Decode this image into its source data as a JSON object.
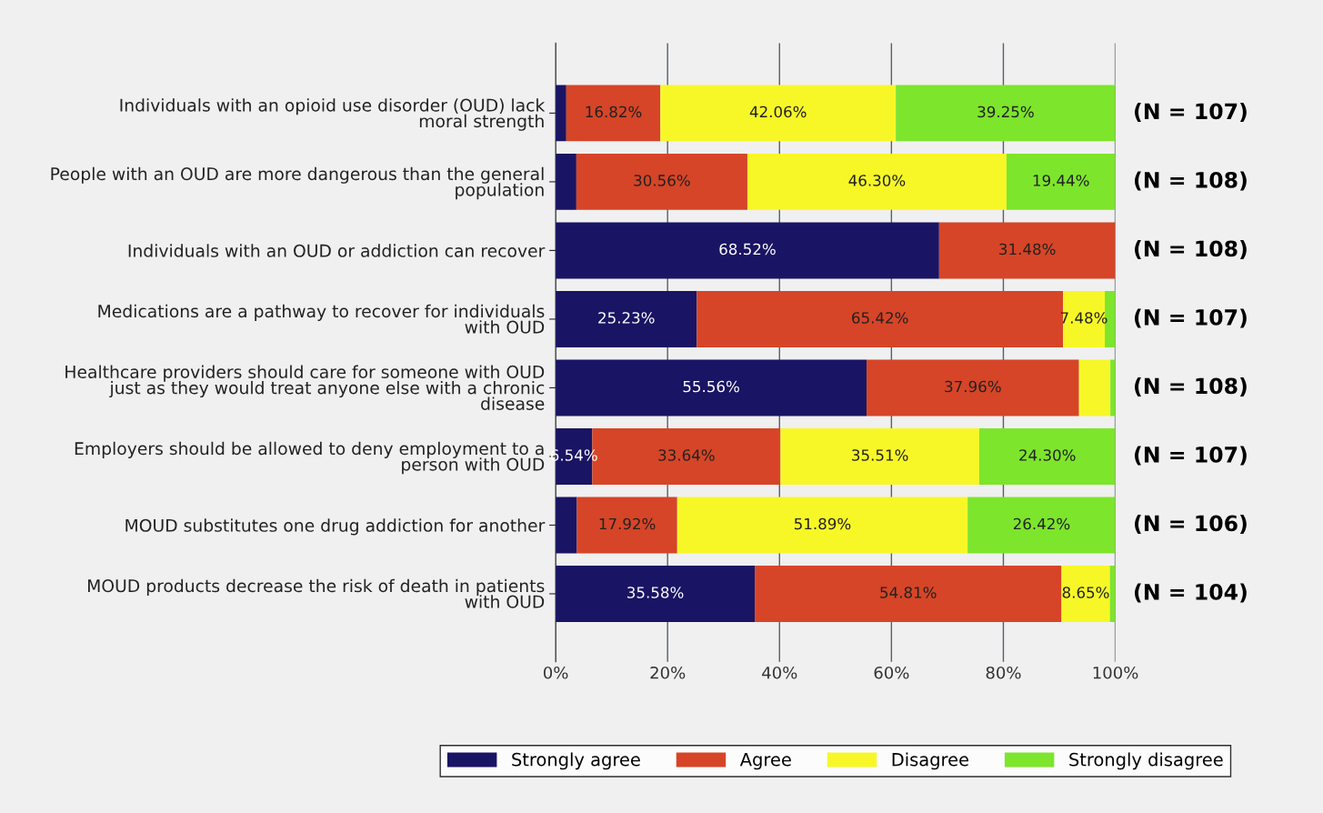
{
  "chart_data": {
    "type": "bar",
    "orientation": "horizontal",
    "stacked": true,
    "categories": [
      "Individuals with an opioid use disorder (OUD) lack\nmoral strength",
      "People with an OUD are more dangerous than the general\npopulation",
      "Individuals with an OUD or addiction can recover",
      "Medications are a pathway to recover for individuals\nwith OUD",
      "Healthcare providers should care for someone with OUD\njust as they would treat anyone else with a chronic\ndisease",
      "Employers should be allowed to deny employment to a\nperson with OUD",
      "MOUD substitutes one drug addiction for another",
      "MOUD products decrease the risk of death in patients\nwith OUD"
    ],
    "series": [
      {
        "name": "Strongly agree",
        "color": "#1a1464",
        "values": [
          1.9,
          3.7,
          68.52,
          25.23,
          55.56,
          6.54,
          3.8,
          35.58
        ],
        "value_labels": [
          null,
          null,
          "68.52%",
          "25.23%",
          "55.56%",
          "6.54%",
          null,
          "35.58%"
        ]
      },
      {
        "name": "Agree",
        "color": "#d64527",
        "values": [
          16.82,
          30.56,
          31.48,
          65.42,
          37.96,
          33.64,
          17.92,
          54.81
        ],
        "value_labels": [
          "16.82%",
          "30.56%",
          "31.48%",
          "65.42%",
          "37.96%",
          "33.64%",
          "17.92%",
          "54.81%"
        ]
      },
      {
        "name": "Disagree",
        "color": "#f7f728",
        "values": [
          42.06,
          46.3,
          0,
          7.48,
          5.6,
          35.51,
          51.89,
          8.65
        ],
        "value_labels": [
          "42.06%",
          "46.30%",
          null,
          "7.48%",
          null,
          "35.51%",
          "51.89%",
          "8.65%"
        ]
      },
      {
        "name": "Strongly disagree",
        "color": "#7de52c",
        "values": [
          39.25,
          19.44,
          0,
          1.9,
          0.9,
          24.3,
          26.42,
          1.0
        ],
        "value_labels": [
          "39.25%",
          "19.44%",
          null,
          null,
          null,
          "24.30%",
          "26.42%",
          null
        ]
      }
    ],
    "xlim": [
      0,
      100
    ],
    "xticks": [
      {
        "value": 0,
        "label": "0%"
      },
      {
        "value": 20,
        "label": "20%"
      },
      {
        "value": 40,
        "label": "40%"
      },
      {
        "value": 60,
        "label": "60%"
      },
      {
        "value": 80,
        "label": "80%"
      },
      {
        "value": 100,
        "label": "100%"
      }
    ],
    "grid": "x",
    "legend": "bottom",
    "annotations": [
      "(N = 107)",
      "(N = 108)",
      "(N = 108)",
      "(N = 107)",
      "(N = 108)",
      "(N = 107)",
      "(N = 106)",
      "(N = 104)"
    ]
  }
}
